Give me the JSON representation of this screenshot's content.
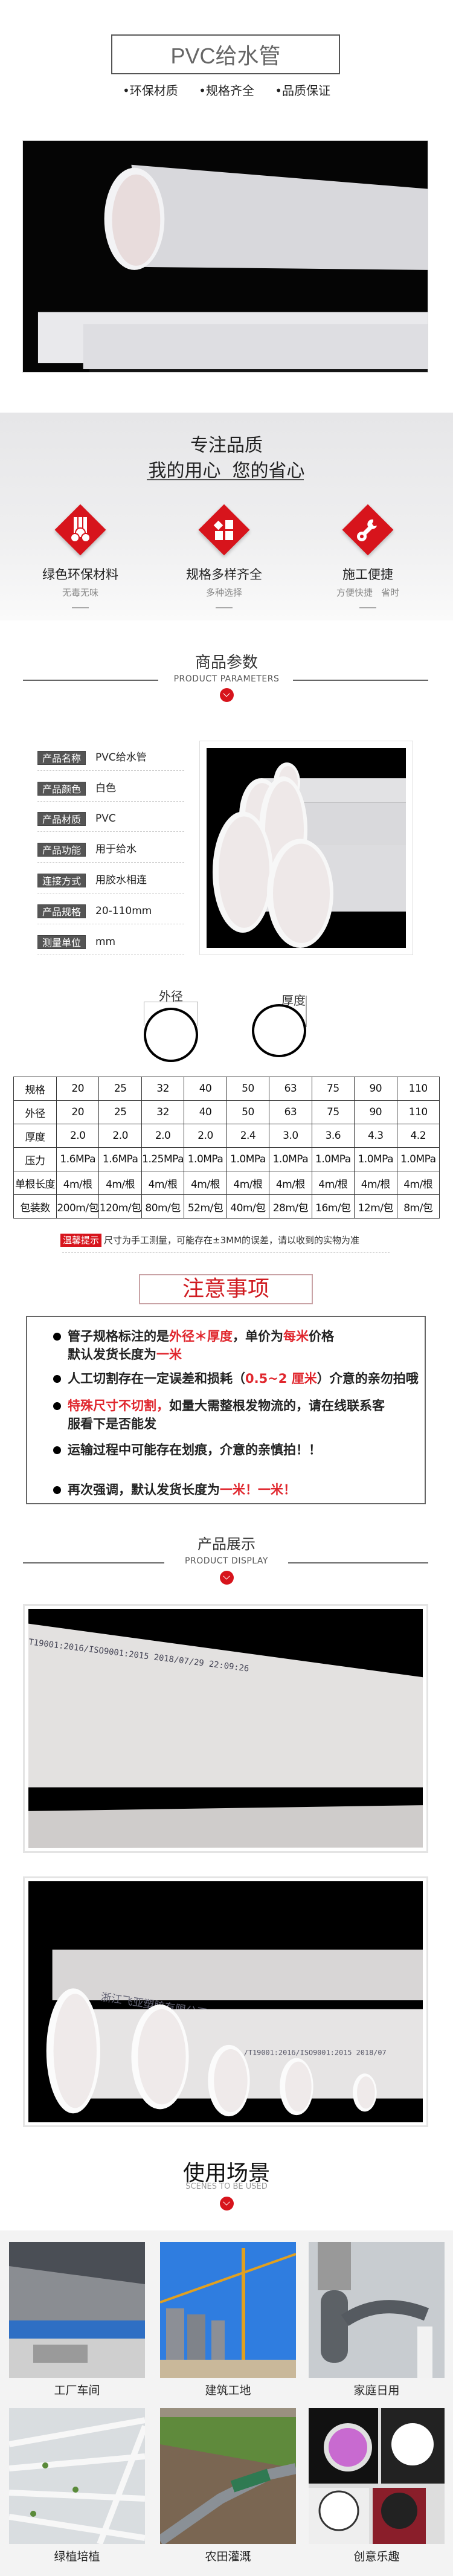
{
  "header": {
    "title": "PVC给水管",
    "bullets": [
      "•环保材质",
      "•规格齐全",
      "•品质保证"
    ]
  },
  "slogan": {
    "line1": "专注品质",
    "line2": "我的用心  您的省心"
  },
  "features": [
    {
      "title": "绿色环保材料",
      "subtitle": "无毒无味",
      "icon": "pipes-icon"
    },
    {
      "title": "规格多样齐全",
      "subtitle": "多种选择",
      "icon": "grid-icon"
    },
    {
      "title": "施工便捷",
      "subtitle": "方便快捷   省时",
      "icon": "wrench-icon"
    }
  ],
  "params_section": {
    "title": "商品参数",
    "subtitle": "PRODUCT PARAMETERS"
  },
  "params": [
    {
      "label": "产品名称",
      "value": "PVC给水管"
    },
    {
      "label": "产品颜色",
      "value": "白色"
    },
    {
      "label": "产品材质",
      "value": "PVC"
    },
    {
      "label": "产品功能",
      "value": "用于给水"
    },
    {
      "label": "连接方式",
      "value": "用胶水相连"
    },
    {
      "label": "产品规格",
      "value": "20-110mm"
    },
    {
      "label": "测量单位",
      "value": "mm"
    }
  ],
  "diagram": {
    "outer_label": "外径",
    "thickness_label": "厚度"
  },
  "spec_table": {
    "rows": [
      [
        "规格",
        "20",
        "25",
        "32",
        "40",
        "50",
        "63",
        "75",
        "90",
        "110"
      ],
      [
        "外径",
        "20",
        "25",
        "32",
        "40",
        "50",
        "63",
        "75",
        "90",
        "110"
      ],
      [
        "厚度",
        "2.0",
        "2.0",
        "2.0",
        "2.0",
        "2.4",
        "3.0",
        "3.6",
        "4.3",
        "4.2"
      ],
      [
        "压力",
        "1.6MPa",
        "1.6MPa",
        "1.25MPa",
        "1.0MPa",
        "1.0MPa",
        "1.0MPa",
        "1.0MPa",
        "1.0MPa",
        "1.0MPa"
      ],
      [
        "单根长度",
        "4m/根",
        "4m/根",
        "4m/根",
        "4m/根",
        "4m/根",
        "4m/根",
        "4m/根",
        "4m/根",
        "4m/根"
      ],
      [
        "包装数",
        "200m/包",
        "120m/包",
        "80m/包",
        "52m/包",
        "40m/包",
        "28m/包",
        "16m/包",
        "12m/包",
        "8m/包"
      ]
    ]
  },
  "tip": {
    "badge": "温馨提示",
    "text": "尺寸为手工测量，可能存在±3MM的误差，请以收到的实物为准"
  },
  "notes": {
    "title": "注意事项",
    "items": [
      {
        "lines": [
          [
            {
              "t": "管子规格标注的是",
              "red": false
            },
            {
              "t": "外径＊厚度",
              "red": true
            },
            {
              "t": "，单价为",
              "red": false
            },
            {
              "t": "每米",
              "red": true
            },
            {
              "t": "价格",
              "red": false
            }
          ],
          [
            {
              "t": "默认发货长度为",
              "red": false
            },
            {
              "t": "一米",
              "red": true
            }
          ]
        ]
      },
      {
        "lines": [
          [
            {
              "t": "人工切割存在一定误差和损耗（",
              "red": false
            },
            {
              "t": "0.5~2 厘米",
              "red": true
            },
            {
              "t": "）介意的亲勿拍哦",
              "red": false
            }
          ]
        ]
      },
      {
        "lines": [
          [
            {
              "t": "特殊尺寸不切割，",
              "red": true
            },
            {
              "t": "如量大需整根发物流的，请在线联系客",
              "red": false
            }
          ],
          [
            {
              "t": "服看下是否能发",
              "red": false
            }
          ]
        ]
      },
      {
        "lines": [
          [
            {
              "t": "运输过程中可能存在划痕，介意的亲慎拍！！",
              "red": false
            }
          ]
        ]
      },
      {
        "lines": [
          [
            {
              "t": "再次强调，默认发货长度为",
              "red": false
            },
            {
              "t": "一米！一米！",
              "red": true
            }
          ]
        ]
      }
    ]
  },
  "display_section": {
    "title": "产品展示",
    "subtitle": "PRODUCT DISPLAY",
    "photo1_print": "T19001:2016/ISO9001:2015   2018/07/29   22:09:26",
    "photo2_print": "浙江飞亚塑胶有限公司   环保无铅",
    "photo3_print": "/T19001:2016/ISO9001:2015  2018/07"
  },
  "scenes_section": {
    "title": "使用场景",
    "subtitle": "SCENES TO BE USED"
  },
  "scenes": [
    {
      "label": "工厂车间"
    },
    {
      "label": "建筑工地"
    },
    {
      "label": "家庭日用"
    },
    {
      "label": "绿植培植"
    },
    {
      "label": "农田灌溉"
    },
    {
      "label": "创意乐趣"
    }
  ],
  "colors": {
    "accent": "#d7141c",
    "label_bg": "#555555",
    "note_red": "#e0262d"
  }
}
